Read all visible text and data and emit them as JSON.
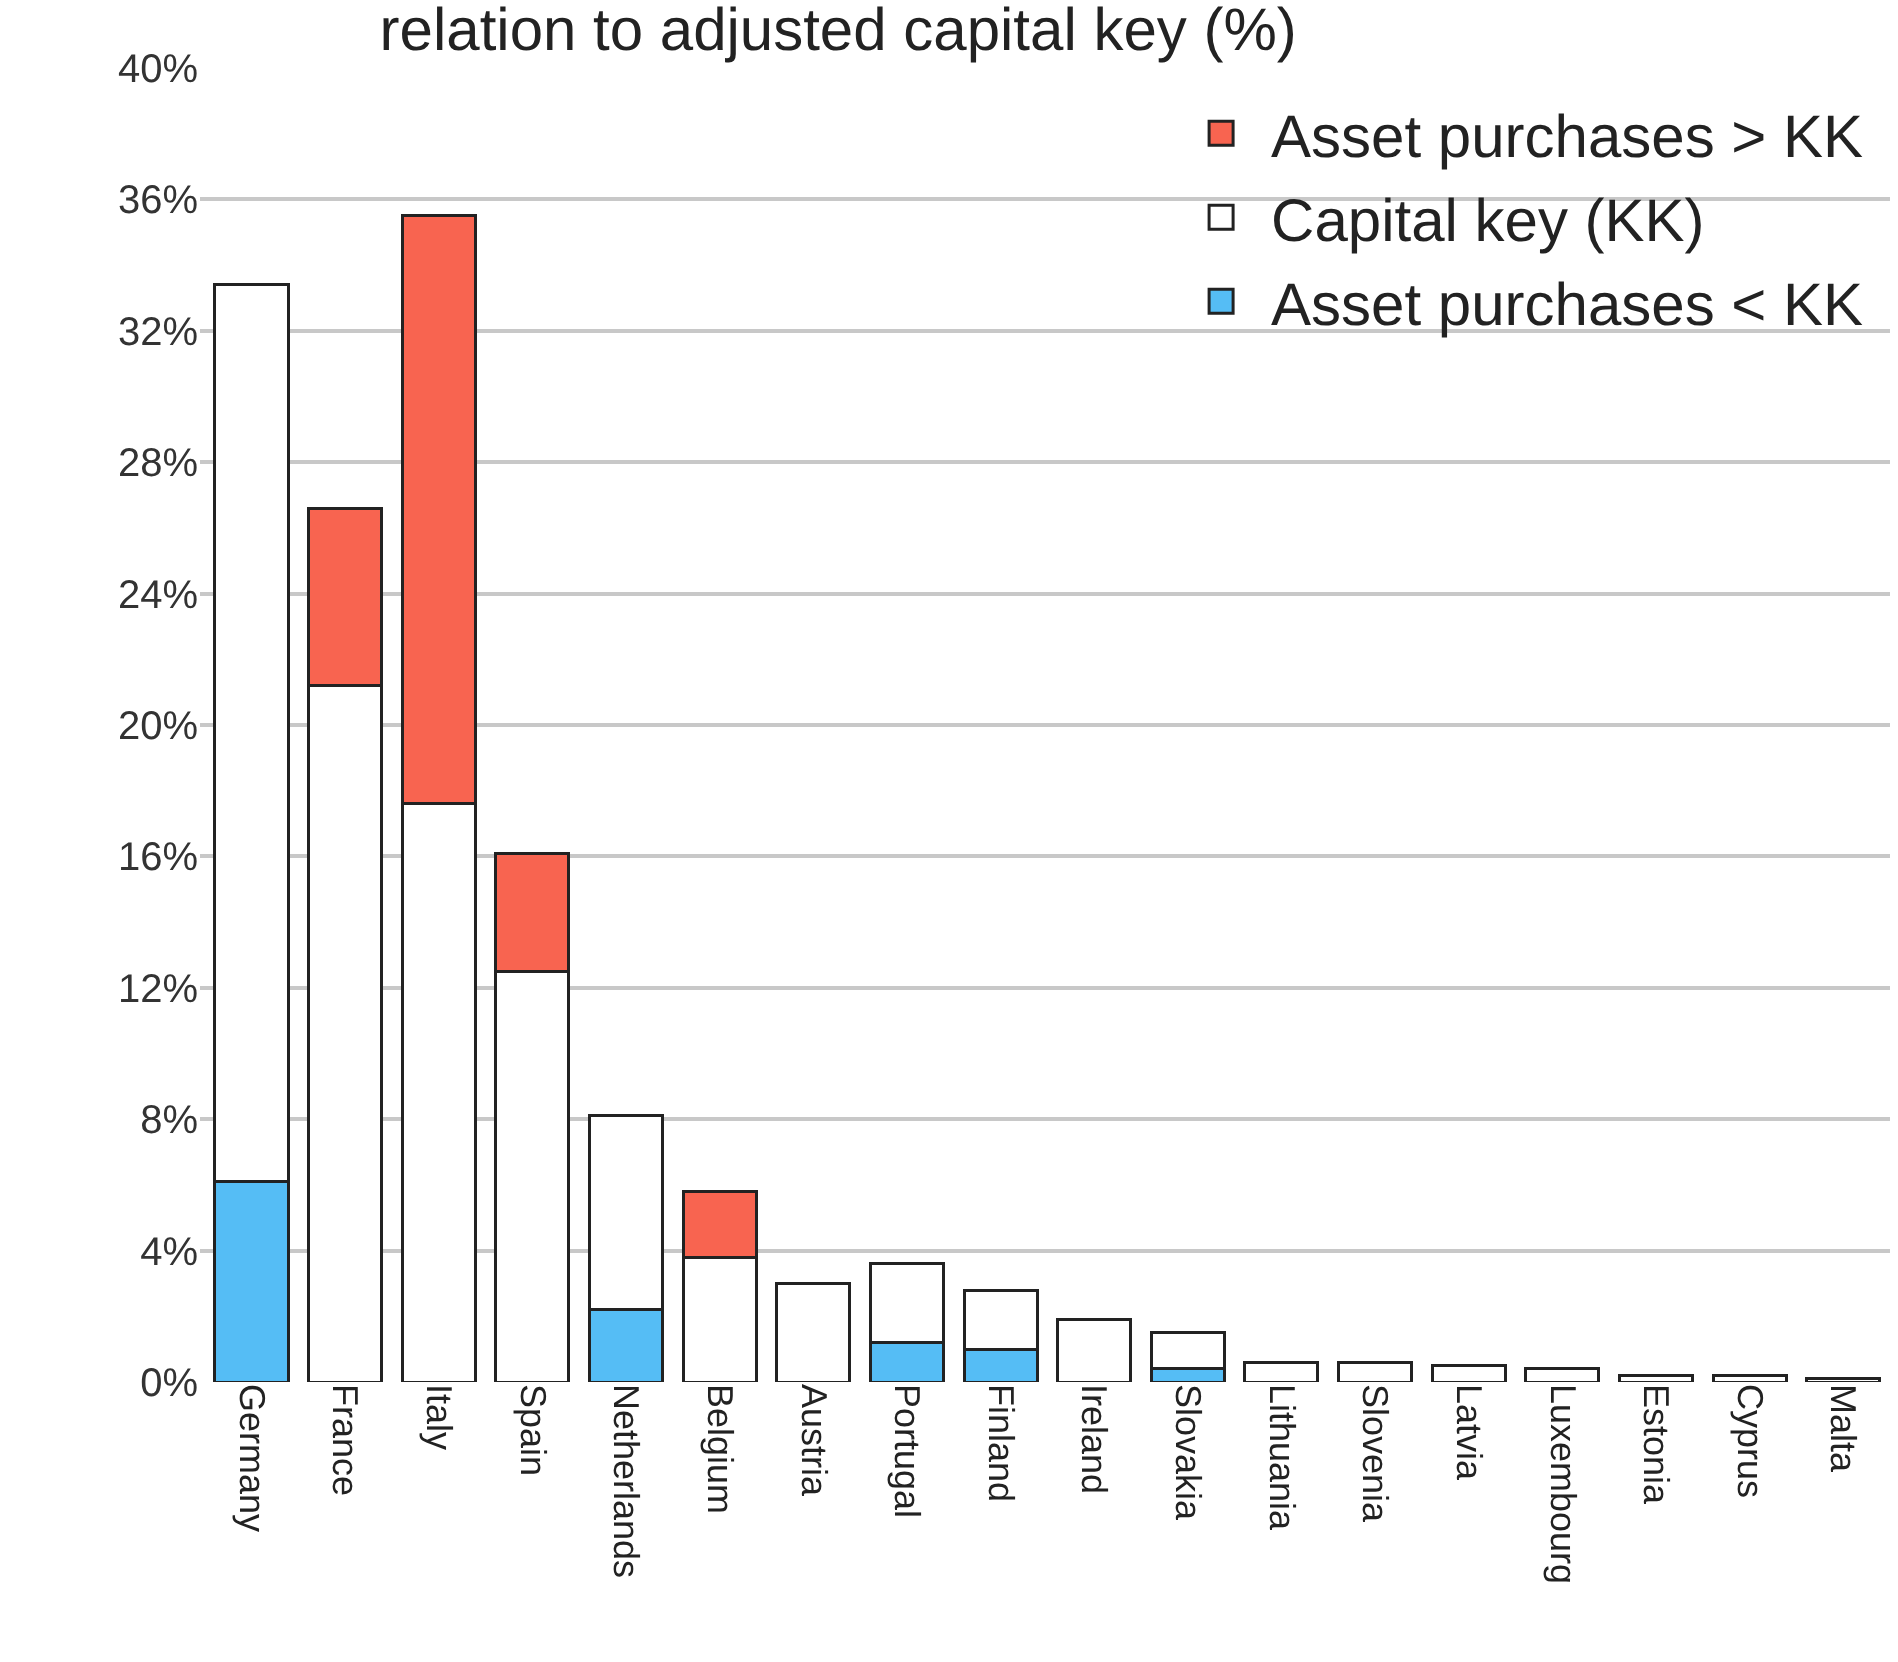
{
  "chart_data": {
    "type": "bar",
    "title": "relation to adjusted capital key (%)",
    "stacked": true,
    "categories": [
      "Germany",
      "France",
      "Italy",
      "Spain",
      "Netherlands",
      "Belgium",
      "Austria",
      "Portugal",
      "Finland",
      "Ireland",
      "Slovakia",
      "Lithuania",
      "Slovenia",
      "Latvia",
      "Luxembourg",
      "Estonia",
      "Cyprus",
      "Malta"
    ],
    "series": [
      {
        "name": "Asset purchases < KK",
        "color": "#55bdf5",
        "values": [
          6.1,
          null,
          null,
          null,
          2.2,
          null,
          null,
          1.2,
          1.0,
          null,
          0.4,
          null,
          null,
          null,
          null,
          null,
          null,
          null
        ]
      },
      {
        "name": "Capital key (KK)",
        "color": "#ffffff",
        "values": [
          27.3,
          21.2,
          17.6,
          12.5,
          5.9,
          3.8,
          3.0,
          2.4,
          1.8,
          1.9,
          1.1,
          0.6,
          0.6,
          0.5,
          0.4,
          0.2,
          0.2,
          0.1
        ]
      },
      {
        "name": "Asset purchases > KK",
        "color": "#f86450",
        "values": [
          null,
          5.4,
          17.9,
          3.6,
          null,
          2.0,
          null,
          null,
          null,
          null,
          null,
          null,
          null,
          null,
          null,
          null,
          null,
          null
        ]
      }
    ],
    "ylim": [
      0,
      40
    ],
    "yticks": [
      {
        "value": 0,
        "label": "0%"
      },
      {
        "value": 4,
        "label": "4%"
      },
      {
        "value": 8,
        "label": "8%"
      },
      {
        "value": 12,
        "label": "12%"
      },
      {
        "value": 16,
        "label": "16%"
      },
      {
        "value": 20,
        "label": "20%"
      },
      {
        "value": 24,
        "label": "24%"
      },
      {
        "value": 28,
        "label": "28%"
      },
      {
        "value": 32,
        "label": "32%"
      },
      {
        "value": 36,
        "label": "36%"
      },
      {
        "value": 40,
        "label": "40%"
      }
    ],
    "grid": "y",
    "legend": "top right"
  }
}
